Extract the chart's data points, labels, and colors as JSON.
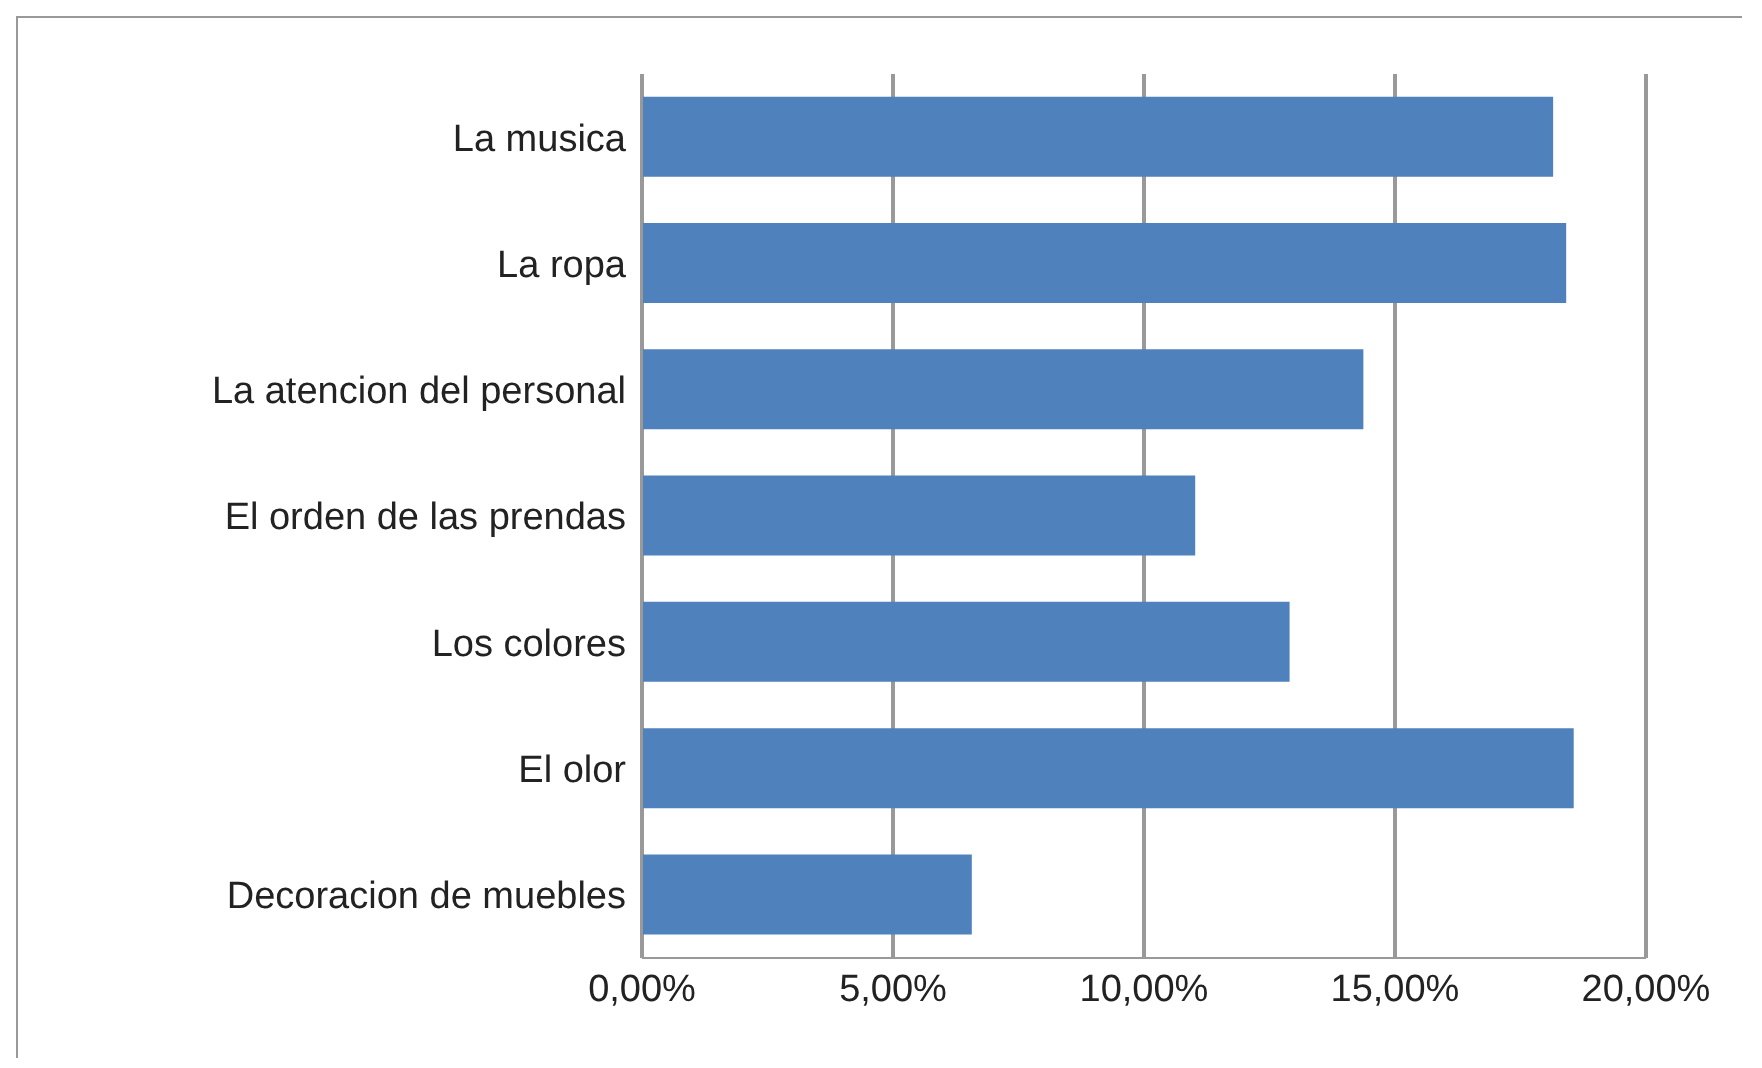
{
  "chart_data": {
    "type": "bar",
    "orientation": "horizontal",
    "categories": [
      "La musica",
      "La ropa",
      "La atencion del personal",
      "El orden de las prendas",
      "Los colores",
      "El olor",
      "Decoracion de muebles"
    ],
    "values": [
      18.15,
      18.41,
      14.37,
      11.02,
      12.9,
      18.56,
      6.57
    ],
    "color": "#4f81bd",
    "xlim": [
      0,
      20
    ],
    "xticks": [
      {
        "value": 0,
        "label": "0,00%"
      },
      {
        "value": 5,
        "label": "5,00%"
      },
      {
        "value": 10,
        "label": "10,00%"
      },
      {
        "value": 15,
        "label": "15,00%"
      },
      {
        "value": 20,
        "label": "20,00%"
      }
    ],
    "grid": "x",
    "legend": false
  }
}
